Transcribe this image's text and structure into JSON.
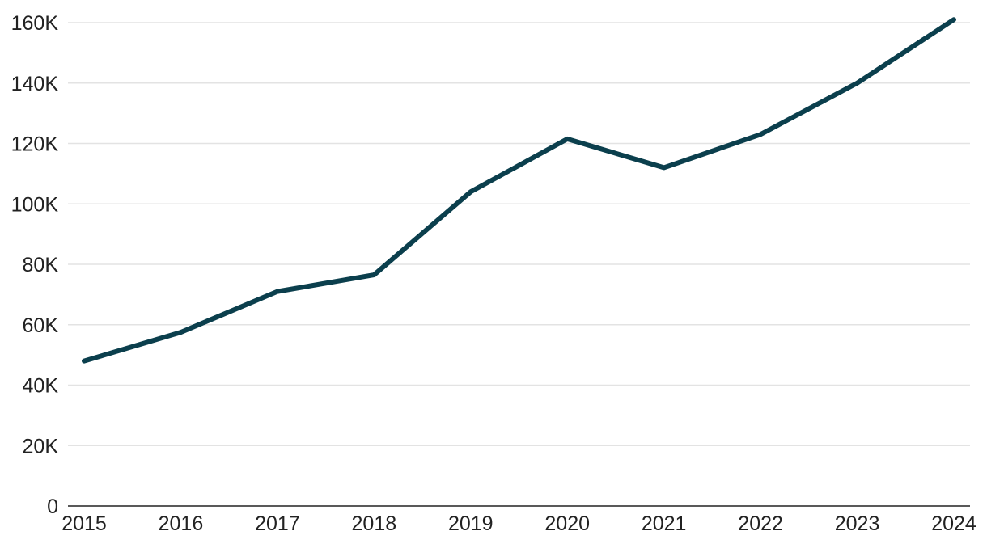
{
  "chart_data": {
    "type": "line",
    "title": "",
    "xlabel": "",
    "ylabel": "",
    "x": [
      2015,
      2016,
      2017,
      2018,
      2019,
      2020,
      2021,
      2022,
      2023,
      2024
    ],
    "x_tick_labels": [
      "2015",
      "2016",
      "2017",
      "2018",
      "2019",
      "2020",
      "2021",
      "2022",
      "2023",
      "2024"
    ],
    "series": [
      {
        "values": [
          48000,
          57500,
          71000,
          76500,
          104000,
          121500,
          112000,
          123000,
          140000,
          161000
        ],
        "color": "#0b3f4d"
      }
    ],
    "ylim": [
      0,
      160000
    ],
    "y_ticks": [
      0,
      20000,
      40000,
      60000,
      80000,
      100000,
      120000,
      140000,
      160000
    ],
    "y_tick_labels": [
      "0",
      "20K",
      "40K",
      "60K",
      "80K",
      "100K",
      "120K",
      "140K",
      "160K"
    ],
    "grid": true,
    "legend": "none"
  }
}
